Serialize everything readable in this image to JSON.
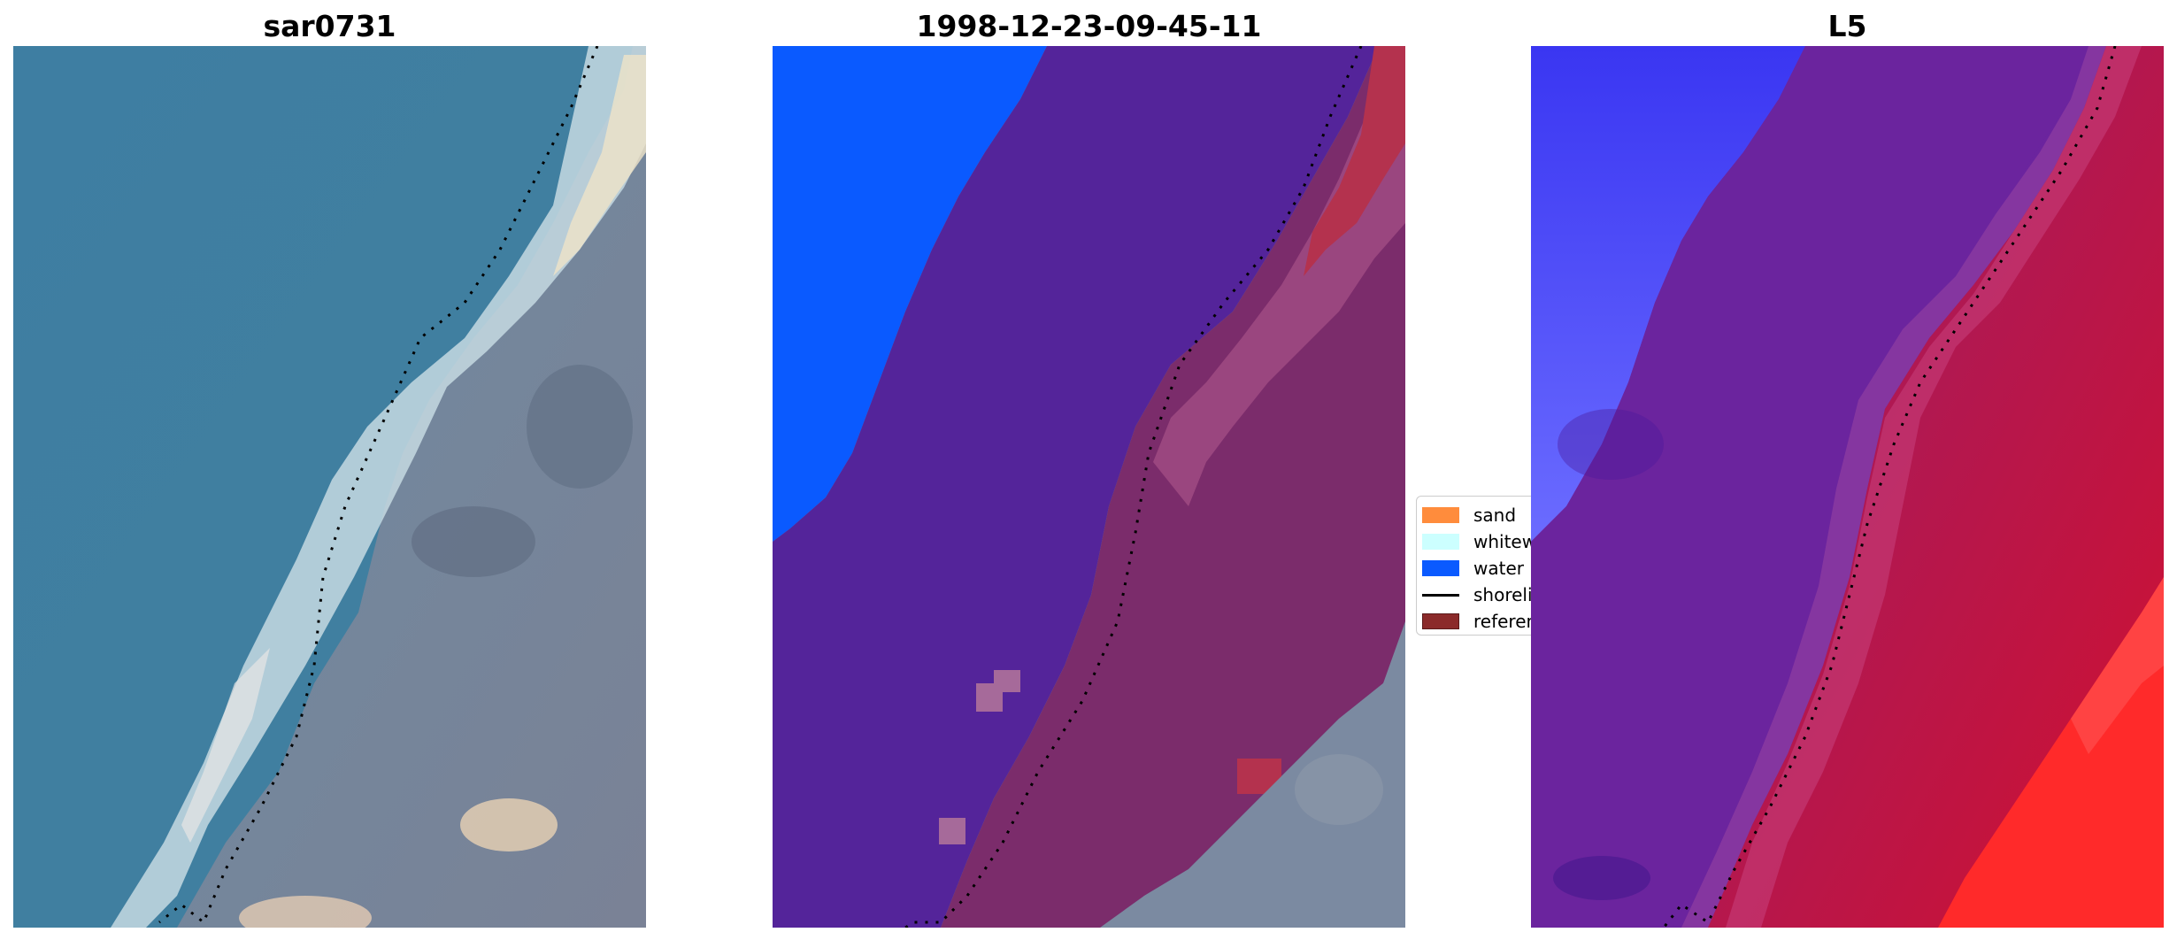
{
  "panels": [
    {
      "title": "sar0731"
    },
    {
      "title": "1998-12-23-09-45-11"
    },
    {
      "title": "L5"
    }
  ],
  "legend": {
    "items": [
      {
        "label": "sand",
        "color": "#ff8c3c"
      },
      {
        "label": "whitewater",
        "color": "#ccffff"
      },
      {
        "label": "water",
        "color": "#0a5aff"
      },
      {
        "label": "shoreline",
        "color": "#000000"
      },
      {
        "label": "reference shoreline buffer",
        "color": "#8b2a2a"
      }
    ]
  },
  "colors": {
    "ocean": "#3f7d9f",
    "land": "#6f7f92",
    "sand_bright": "#f1e2c4",
    "water_class": "#0a5aff",
    "class_purple": "#54249a",
    "class_maroon": "#7b2c6b",
    "buffer_red": "#b4324e",
    "index_blue": "#3a2cf0",
    "index_purple": "#6b249e",
    "index_red": "#cc1030",
    "index_bright_red": "#ff2a2a"
  }
}
